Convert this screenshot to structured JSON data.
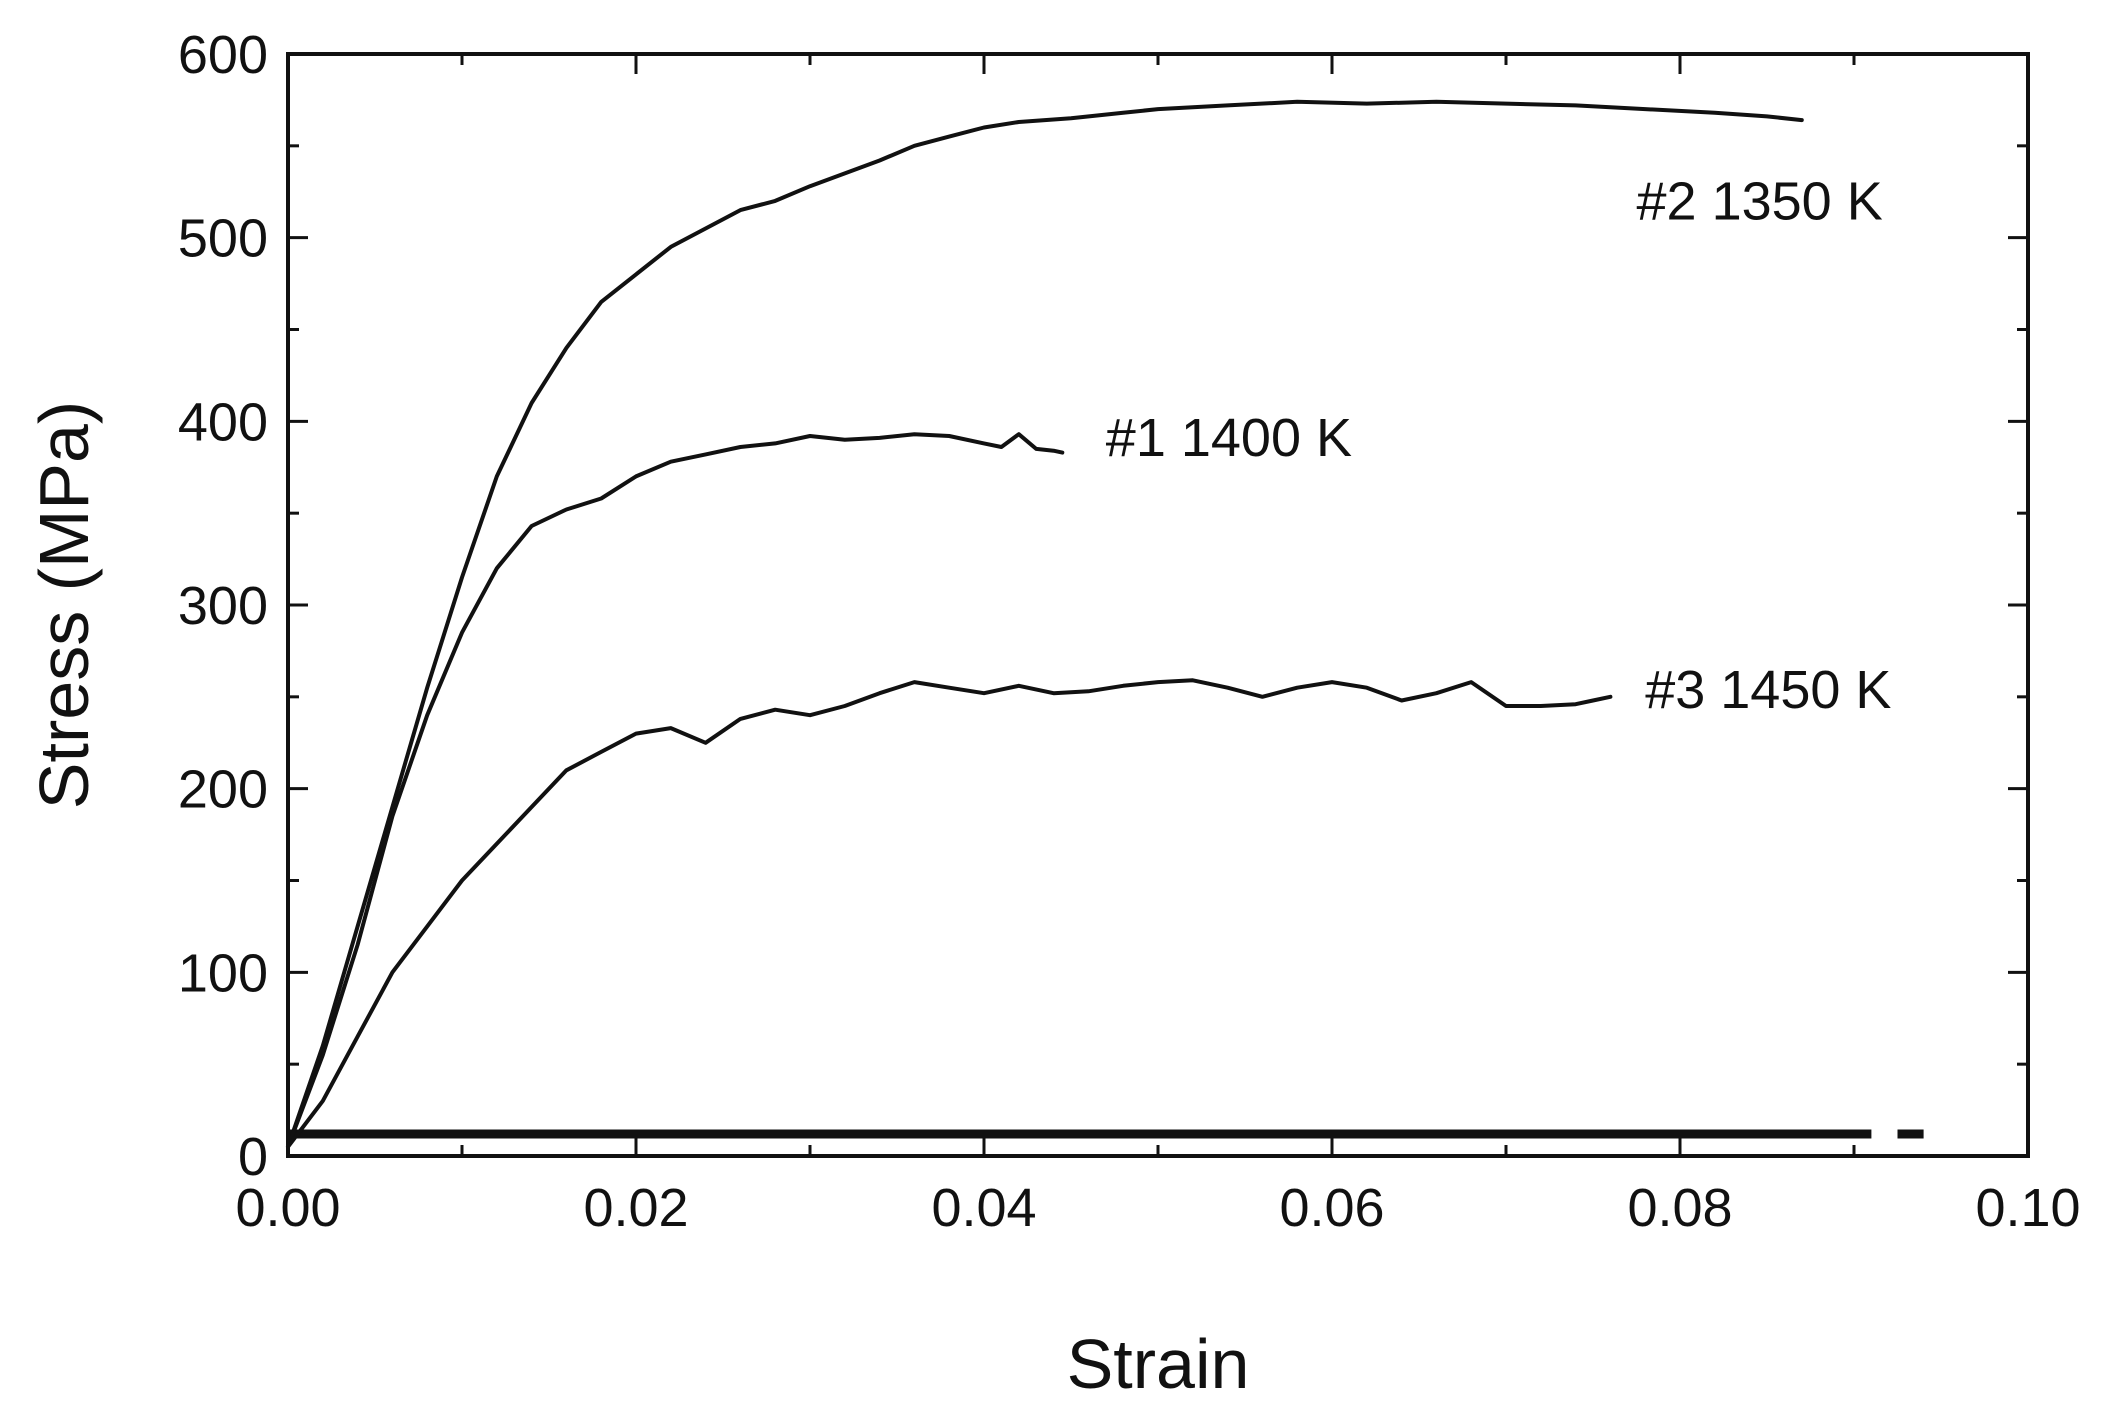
{
  "chart_data": {
    "type": "line",
    "title": "",
    "xlabel": "Strain",
    "ylabel": "Stress  (MPa)",
    "xlim": [
      0.0,
      0.1
    ],
    "ylim": [
      0,
      600
    ],
    "xticks": [
      {
        "value": 0.0,
        "label": "0.00"
      },
      {
        "value": 0.02,
        "label": "0.02"
      },
      {
        "value": 0.04,
        "label": "0.04"
      },
      {
        "value": 0.06,
        "label": "0.06"
      },
      {
        "value": 0.08,
        "label": "0.08"
      },
      {
        "value": 0.1,
        "label": "0.10"
      }
    ],
    "yticks": [
      {
        "value": 0,
        "label": "0"
      },
      {
        "value": 100,
        "label": "100"
      },
      {
        "value": 200,
        "label": "200"
      },
      {
        "value": 300,
        "label": "300"
      },
      {
        "value": 400,
        "label": "400"
      },
      {
        "value": 500,
        "label": "500"
      },
      {
        "value": 600,
        "label": "600"
      }
    ],
    "x_minor_step": 0.01,
    "y_minor_step": 50,
    "grid": false,
    "legend": "none",
    "series": [
      {
        "name": "#2  1350 K",
        "label_anchor": {
          "x": 0.0775,
          "y": 510
        },
        "x": [
          0.0,
          0.002,
          0.004,
          0.006,
          0.008,
          0.01,
          0.012,
          0.014,
          0.016,
          0.018,
          0.02,
          0.022,
          0.024,
          0.026,
          0.028,
          0.03,
          0.032,
          0.034,
          0.036,
          0.038,
          0.04,
          0.042,
          0.045,
          0.048,
          0.05,
          0.054,
          0.058,
          0.062,
          0.066,
          0.07,
          0.074,
          0.078,
          0.082,
          0.085,
          0.087
        ],
        "y": [
          5,
          60,
          125,
          190,
          255,
          315,
          370,
          410,
          440,
          465,
          480,
          495,
          505,
          515,
          520,
          528,
          535,
          542,
          550,
          555,
          560,
          563,
          565,
          568,
          570,
          572,
          574,
          573,
          574,
          573,
          572,
          570,
          568,
          566,
          564
        ]
      },
      {
        "name": "#1  1400 K",
        "label_anchor": {
          "x": 0.047,
          "y": 381
        },
        "x": [
          0.0,
          0.002,
          0.004,
          0.006,
          0.008,
          0.01,
          0.012,
          0.014,
          0.016,
          0.018,
          0.02,
          0.022,
          0.024,
          0.026,
          0.028,
          0.03,
          0.032,
          0.034,
          0.036,
          0.038,
          0.04,
          0.041,
          0.042,
          0.043,
          0.044,
          0.0445
        ],
        "y": [
          5,
          55,
          115,
          185,
          240,
          285,
          320,
          343,
          352,
          358,
          370,
          378,
          382,
          386,
          388,
          392,
          390,
          391,
          393,
          392,
          388,
          386,
          393,
          385,
          384,
          383
        ]
      },
      {
        "name": "#3  1450 K",
        "label_anchor": {
          "x": 0.078,
          "y": 244
        },
        "x": [
          0.0,
          0.002,
          0.004,
          0.006,
          0.008,
          0.01,
          0.012,
          0.014,
          0.016,
          0.018,
          0.02,
          0.022,
          0.024,
          0.026,
          0.028,
          0.03,
          0.032,
          0.034,
          0.036,
          0.038,
          0.04,
          0.042,
          0.044,
          0.046,
          0.048,
          0.05,
          0.052,
          0.054,
          0.056,
          0.058,
          0.06,
          0.062,
          0.064,
          0.066,
          0.068,
          0.07,
          0.072,
          0.074,
          0.075,
          0.076
        ],
        "y": [
          5,
          30,
          65,
          100,
          125,
          150,
          170,
          190,
          210,
          220,
          230,
          233,
          225,
          238,
          243,
          240,
          245,
          252,
          258,
          255,
          252,
          256,
          252,
          253,
          256,
          258,
          259,
          255,
          250,
          255,
          258,
          255,
          248,
          252,
          258,
          245,
          245,
          246,
          248,
          250
        ]
      }
    ],
    "baseline": {
      "y": 12,
      "segments": [
        {
          "x0": 0.0,
          "x1": 0.091
        },
        {
          "x0": 0.0925,
          "x1": 0.094
        }
      ]
    }
  }
}
